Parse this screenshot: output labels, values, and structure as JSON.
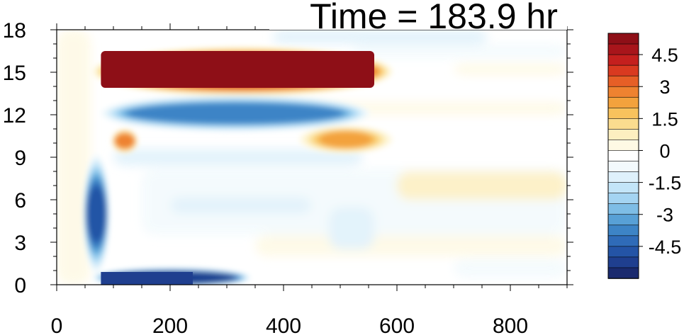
{
  "chart_data": {
    "type": "heatmap",
    "title": "Time = 183.9 hr",
    "xlabel": "",
    "ylabel": "",
    "xlim": [
      0,
      900
    ],
    "ylim": [
      0,
      18
    ],
    "x_ticks": [
      "0",
      "200",
      "400",
      "600",
      "800"
    ],
    "x_tick_values": [
      0,
      200,
      400,
      600,
      800
    ],
    "y_ticks": [
      "0",
      "3",
      "6",
      "9",
      "12",
      "15",
      "18"
    ],
    "y_tick_values": [
      0,
      3,
      6,
      9,
      12,
      15,
      18
    ],
    "grid": false,
    "colorbar": {
      "position": "right",
      "levels": [
        -5.5,
        -5,
        -4.5,
        -4,
        -3.5,
        -3,
        -2.5,
        -2,
        -1.5,
        -1,
        -0.5,
        0,
        0.5,
        1,
        1.5,
        2,
        2.5,
        3,
        3.5,
        4,
        4.5,
        5,
        5.5
      ],
      "tick_labels": [
        "4.5",
        "3",
        "1.5",
        "0",
        "-1.5",
        "-3",
        "-4.5"
      ],
      "tick_values": [
        4.5,
        3,
        1.5,
        0,
        -1.5,
        -3,
        -4.5
      ],
      "colors": [
        "#1a2a6e",
        "#1f3f8f",
        "#2454a6",
        "#2f6bb8",
        "#3d84c6",
        "#58a0d6",
        "#7ebde6",
        "#a4d4f2",
        "#c3e5f8",
        "#dff1fb",
        "#f3fafd",
        "#ffffff",
        "#fef9e4",
        "#fdefc0",
        "#fbdc8f",
        "#f8c25d",
        "#f3a23d",
        "#ee8230",
        "#e65f26",
        "#d93a20",
        "#c4201e",
        "#a8151b",
        "#8e0f17"
      ]
    },
    "features": [
      {
        "name": "upper positive jet",
        "x": [
          75,
          580
        ],
        "y": [
          13.5,
          16.6
        ],
        "value": 5.5
      },
      {
        "name": "upper negative band",
        "x": [
          90,
          540
        ],
        "y": [
          11.0,
          13.2
        ],
        "value": -3.5
      },
      {
        "name": "lower negative layer",
        "x": [
          75,
          330
        ],
        "y": [
          0,
          1.0
        ],
        "value": -5
      },
      {
        "name": "mid positive patch",
        "x": [
          110,
          130
        ],
        "y": [
          9.5,
          10.8
        ],
        "value": 3
      },
      {
        "name": "right positive patch",
        "x": [
          440,
          580
        ],
        "y": [
          9.5,
          11.0
        ],
        "value": 2.5
      },
      {
        "name": "vertical negative column",
        "x": [
          60,
          80
        ],
        "y": [
          1,
          9
        ],
        "value": -4.5
      }
    ]
  }
}
